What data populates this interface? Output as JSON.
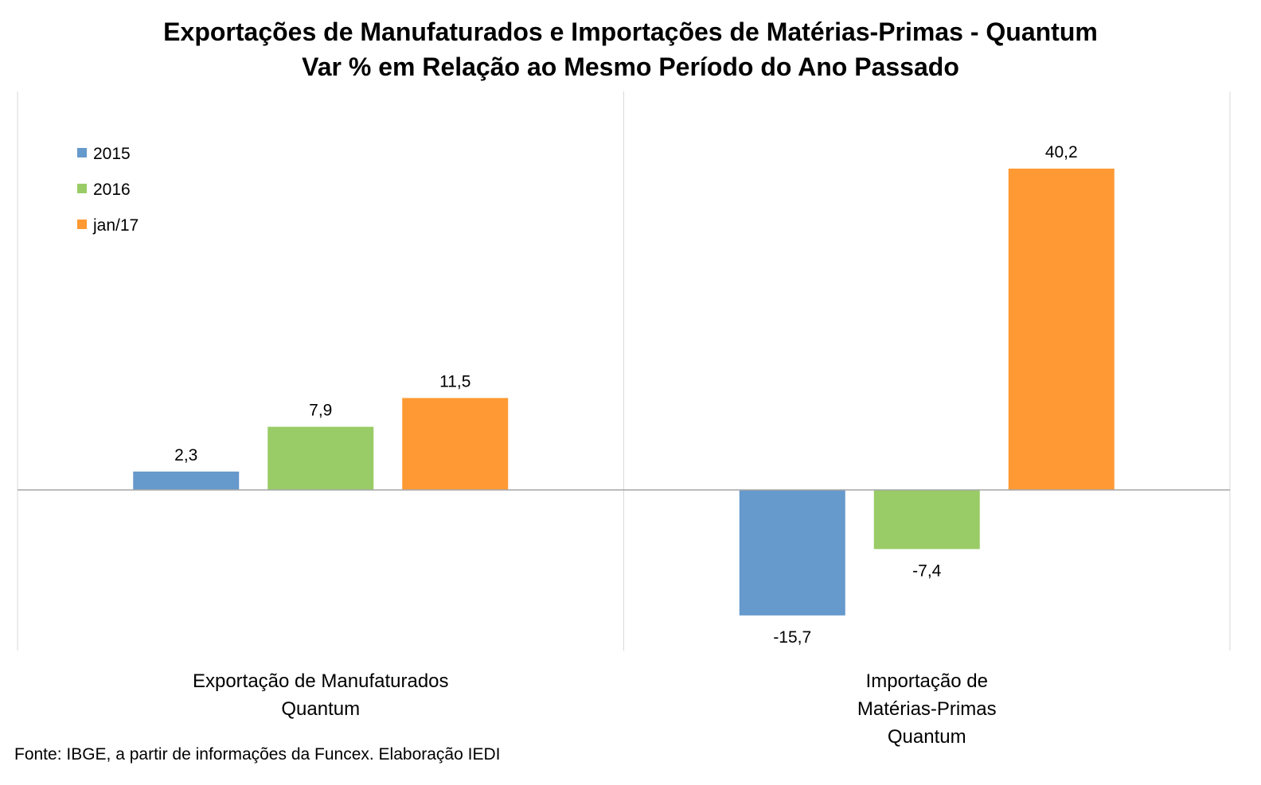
{
  "chart_data": {
    "type": "bar",
    "title": "Exportações de Manufaturados e Importações de Matérias-Primas - Quantum",
    "subtitle": "Var % em Relação ao Mesmo Período do Ano Passado",
    "categories": [
      [
        "Exportação de Manufaturados",
        "Quantum"
      ],
      [
        "Importação de",
        "Matérias-Primas",
        "Quantum"
      ]
    ],
    "series": [
      {
        "name": "2015",
        "color": "#6699cc",
        "values": [
          2.3,
          -15.7
        ],
        "labels": [
          "2,3",
          "-15,7"
        ]
      },
      {
        "name": "2016",
        "color": "#99cc66",
        "values": [
          7.9,
          -7.4
        ],
        "labels": [
          "7,9",
          "-7,4"
        ]
      },
      {
        "name": "jan/17",
        "color": "#ff9933",
        "values": [
          11.5,
          40.2
        ],
        "labels": [
          "11,5",
          "40,2"
        ]
      }
    ],
    "ylim": [
      -20,
      50
    ],
    "legend_position": "top-left",
    "grid": false
  },
  "source": "Fonte: IBGE, a partir de informações da Funcex. Elaboração IEDI"
}
